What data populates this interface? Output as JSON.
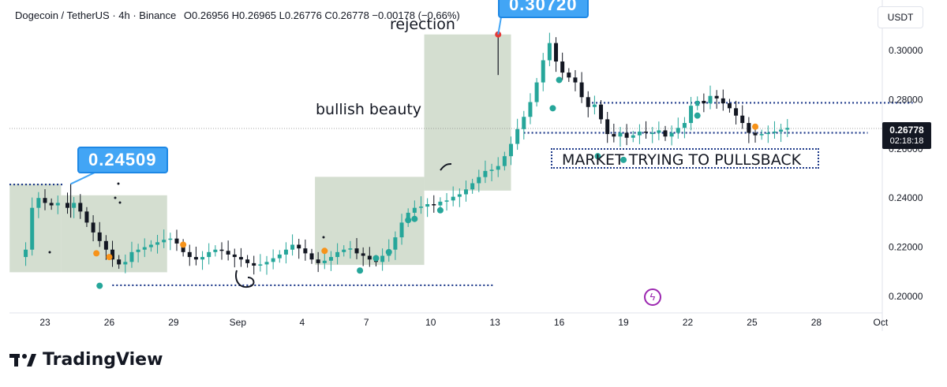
{
  "header": {
    "symbol": "Dogecoin / TetherUS · 4h · Binance",
    "ohlc": "O0.26956 H0.26965 L0.26776 C0.26778 −0.00178 (−0.66%)"
  },
  "currency_label": "USDT",
  "last_price": {
    "price": "0.26778",
    "countdown": "02:18:18"
  },
  "annotations": {
    "high_callout": "0.30720",
    "low_callout": "0.24509",
    "rejection": "rejection",
    "bullish": "bullish beauty",
    "market": "MARKET TRYING TO PULLSBACK"
  },
  "footer": {
    "brand": "TradingView"
  },
  "colors": {
    "up": "#26a69a",
    "down": "#131722",
    "zone": "#c5d3c0",
    "callout": "#42a5f5",
    "level": "#1e3a8a",
    "dot_green": "#26a69a",
    "dot_orange": "#f7931a",
    "dot_red": "#e53935"
  },
  "chart_data": {
    "type": "candlestick",
    "x_ticks": [
      "23",
      "26",
      "29",
      "Sep",
      "4",
      "7",
      "10",
      "13",
      "16",
      "19",
      "22",
      "25",
      "28",
      "Oct"
    ],
    "y_ticks": [
      "0.30000",
      "0.28000",
      "0.26000",
      "0.24000",
      "0.22000",
      "0.20000"
    ],
    "ylim": [
      0.1975,
      0.31
    ],
    "key_levels": [
      {
        "price": 0.2455,
        "from_tick": 0,
        "to_tick": 0.3
      },
      {
        "price": 0.2045,
        "from_tick": 1.6,
        "to_tick": 7.0
      },
      {
        "price": 0.2665,
        "from_tick": 8.0,
        "to_tick": 12.8
      },
      {
        "price": 0.2787,
        "from_tick": 9.0,
        "to_tick": 13.5
      }
    ],
    "zones": [
      {
        "tick_from": -0.55,
        "tick_to": 0.25,
        "price_from": 0.2098,
        "price_to": 0.2457
      },
      {
        "tick_from": 0.25,
        "tick_to": 1.9,
        "price_from": 0.2098,
        "price_to": 0.2411
      },
      {
        "tick_from": 4.2,
        "tick_to": 5.9,
        "price_from": 0.2128,
        "price_to": 0.2486
      },
      {
        "tick_from": 5.9,
        "tick_to": 7.25,
        "price_from": 0.243,
        "price_to": 0.3065
      }
    ],
    "close_path": [
      [
        -0.55,
        0.216
      ],
      [
        -0.3,
        0.219
      ],
      [
        -0.2,
        0.236
      ],
      [
        -0.1,
        0.24
      ],
      [
        0.0,
        0.238
      ],
      [
        0.1,
        0.237
      ],
      [
        0.2,
        0.238
      ],
      [
        0.35,
        0.236
      ],
      [
        0.45,
        0.238
      ],
      [
        0.55,
        0.2345
      ],
      [
        0.65,
        0.23
      ],
      [
        0.75,
        0.226
      ],
      [
        0.85,
        0.2225
      ],
      [
        0.95,
        0.219
      ],
      [
        1.05,
        0.215
      ],
      [
        1.15,
        0.213
      ],
      [
        1.25,
        0.214
      ],
      [
        1.35,
        0.218
      ],
      [
        1.45,
        0.219
      ],
      [
        1.55,
        0.22
      ],
      [
        1.65,
        0.221
      ],
      [
        1.75,
        0.222
      ],
      [
        1.85,
        0.223
      ],
      [
        1.95,
        0.2235
      ],
      [
        2.05,
        0.2215
      ],
      [
        2.15,
        0.218
      ],
      [
        2.25,
        0.216
      ],
      [
        2.35,
        0.215
      ],
      [
        2.45,
        0.216
      ],
      [
        2.55,
        0.218
      ],
      [
        2.65,
        0.219
      ],
      [
        2.75,
        0.2185
      ],
      [
        2.85,
        0.217
      ],
      [
        2.95,
        0.216
      ],
      [
        3.05,
        0.215
      ],
      [
        3.15,
        0.2135
      ],
      [
        3.25,
        0.2125
      ],
      [
        3.35,
        0.213
      ],
      [
        3.45,
        0.214
      ],
      [
        3.55,
        0.2155
      ],
      [
        3.65,
        0.217
      ],
      [
        3.75,
        0.219
      ],
      [
        3.85,
        0.221
      ],
      [
        3.95,
        0.2195
      ],
      [
        4.05,
        0.2175
      ],
      [
        4.15,
        0.215
      ],
      [
        4.25,
        0.2135
      ],
      [
        4.35,
        0.2145
      ],
      [
        4.45,
        0.216
      ],
      [
        4.55,
        0.218
      ],
      [
        4.65,
        0.219
      ],
      [
        4.75,
        0.2195
      ],
      [
        4.85,
        0.2175
      ],
      [
        4.95,
        0.2165
      ],
      [
        5.05,
        0.215
      ],
      [
        5.15,
        0.214
      ],
      [
        5.25,
        0.2165
      ],
      [
        5.35,
        0.219
      ],
      [
        5.45,
        0.224
      ],
      [
        5.55,
        0.23
      ],
      [
        5.65,
        0.234
      ],
      [
        5.75,
        0.236
      ],
      [
        5.85,
        0.2365
      ],
      [
        5.95,
        0.2375
      ],
      [
        6.05,
        0.237
      ],
      [
        6.15,
        0.2385
      ],
      [
        6.25,
        0.239
      ],
      [
        6.35,
        0.2405
      ],
      [
        6.45,
        0.2415
      ],
      [
        6.55,
        0.2435
      ],
      [
        6.65,
        0.246
      ],
      [
        6.75,
        0.2485
      ],
      [
        6.85,
        0.251
      ],
      [
        6.95,
        0.2515
      ],
      [
        7.05,
        0.253
      ],
      [
        7.15,
        0.257
      ],
      [
        7.25,
        0.262
      ],
      [
        7.35,
        0.268
      ],
      [
        7.45,
        0.273
      ],
      [
        7.55,
        0.279
      ],
      [
        7.65,
        0.287
      ],
      [
        7.75,
        0.296
      ],
      [
        7.85,
        0.303
      ],
      [
        7.95,
        0.2955
      ],
      [
        8.05,
        0.291
      ],
      [
        8.15,
        0.289
      ],
      [
        8.25,
        0.287
      ],
      [
        8.35,
        0.281
      ],
      [
        8.45,
        0.277
      ],
      [
        8.55,
        0.278
      ],
      [
        8.65,
        0.272
      ],
      [
        8.75,
        0.266
      ],
      [
        8.85,
        0.265
      ],
      [
        8.95,
        0.2665
      ],
      [
        9.05,
        0.2645
      ],
      [
        9.15,
        0.2655
      ],
      [
        9.25,
        0.267
      ],
      [
        9.35,
        0.2665
      ],
      [
        9.45,
        0.2665
      ],
      [
        9.55,
        0.2675
      ],
      [
        9.65,
        0.265
      ],
      [
        9.75,
        0.2665
      ],
      [
        9.85,
        0.2685
      ],
      [
        9.95,
        0.2705
      ],
      [
        10.05,
        0.2775
      ],
      [
        10.15,
        0.2795
      ],
      [
        10.25,
        0.2785
      ],
      [
        10.35,
        0.2815
      ],
      [
        10.45,
        0.2805
      ],
      [
        10.55,
        0.2785
      ],
      [
        10.65,
        0.2765
      ],
      [
        10.75,
        0.2735
      ],
      [
        10.85,
        0.2705
      ],
      [
        10.95,
        0.2665
      ],
      [
        11.05,
        0.2655
      ],
      [
        11.15,
        0.266
      ],
      [
        11.25,
        0.2665
      ],
      [
        11.35,
        0.267
      ],
      [
        11.45,
        0.2678
      ],
      [
        11.55,
        0.2685
      ]
    ],
    "markers": [
      {
        "tick": 0.8,
        "price": 0.2175,
        "color": "dot_orange"
      },
      {
        "tick": 1.0,
        "price": 0.216,
        "color": "dot_orange"
      },
      {
        "tick": 0.85,
        "price": 0.2043,
        "color": "dot_green"
      },
      {
        "tick": 2.15,
        "price": 0.221,
        "color": "dot_orange"
      },
      {
        "tick": 4.35,
        "price": 0.2185,
        "color": "dot_orange"
      },
      {
        "tick": 4.9,
        "price": 0.2105,
        "color": "dot_green"
      },
      {
        "tick": 5.15,
        "price": 0.2155,
        "color": "dot_green"
      },
      {
        "tick": 5.35,
        "price": 0.218,
        "color": "dot_green"
      },
      {
        "tick": 5.65,
        "price": 0.231,
        "color": "dot_green"
      },
      {
        "tick": 5.75,
        "price": 0.2315,
        "color": "dot_green"
      },
      {
        "tick": 6.15,
        "price": 0.235,
        "color": "dot_green"
      },
      {
        "tick": 7.05,
        "price": 0.3065,
        "color": "dot_red"
      },
      {
        "tick": 7.9,
        "price": 0.2765,
        "color": "dot_green"
      },
      {
        "tick": 8.0,
        "price": 0.288,
        "color": "dot_green"
      },
      {
        "tick": 8.6,
        "price": 0.257,
        "color": "dot_green"
      },
      {
        "tick": 9.0,
        "price": 0.2555,
        "color": "dot_green"
      },
      {
        "tick": 10.15,
        "price": 0.2735,
        "color": "dot_green"
      },
      {
        "tick": 11.05,
        "price": 0.269,
        "color": "dot_orange"
      }
    ]
  }
}
